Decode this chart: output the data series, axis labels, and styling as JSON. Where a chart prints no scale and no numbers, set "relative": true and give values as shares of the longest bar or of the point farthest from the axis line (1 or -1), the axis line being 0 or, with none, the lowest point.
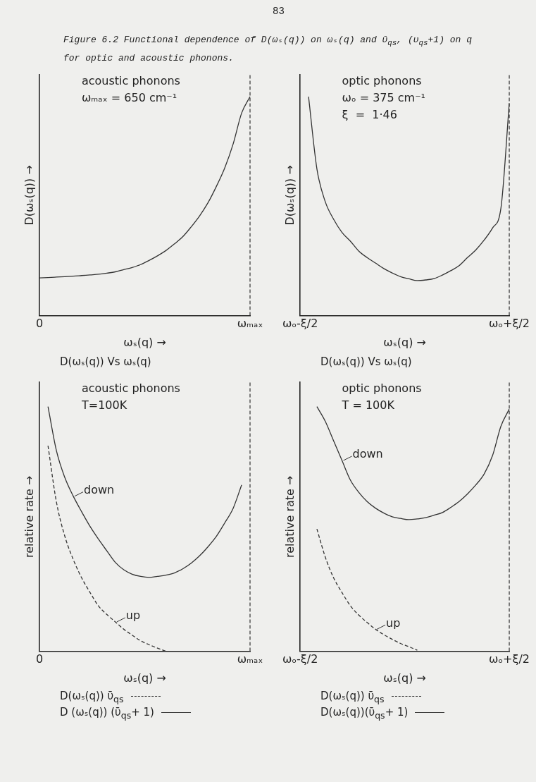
{
  "chart_data": [
    {
      "type": "other",
      "title": "Figure 6.2  Functional dependence of D(ωₛ(q)) on ωₛ(q) and ῡ$_{qs}$, (υ$_{qs}$+1) on q for optic and acoustic phonons.",
      "annotations": [
        "83"
      ]
    },
    {
      "type": "line",
      "title": "D(ωₛ(q)) Vs ωₛ(q)",
      "xlabel": "ωₛ(q) →",
      "ylabel": "D(ωₛ(q)) →",
      "annotations": [
        "acoustic phonons",
        "ωₘₐₓ = 650 cm⁻¹"
      ],
      "relative": true,
      "categories": [
        "0",
        null,
        null,
        null,
        null,
        null,
        null,
        null,
        null,
        null,
        null,
        null,
        null,
        null,
        null,
        null,
        null,
        null,
        null,
        null,
        null,
        null,
        null,
        null,
        null,
        "ωₘₐₓ"
      ],
      "ref_lines": [
        {
          "axis": "x",
          "value": "ωₘₐₓ",
          "line_style": "dashed",
          "color": "#333333"
        }
      ],
      "series": [
        {
          "color": "#333333",
          "values": [
            0.172,
            0.174,
            0.176,
            0.178,
            0.18,
            0.183,
            0.186,
            0.189,
            0.194,
            0.2,
            0.21,
            0.22,
            0.233,
            0.252,
            0.273,
            0.297,
            0.327,
            0.36,
            0.405,
            0.455,
            0.515,
            0.59,
            0.675,
            0.785,
            0.925,
            1
          ]
        }
      ]
    },
    {
      "type": "line",
      "title": "D(ωₛ(q)) Vs ωₛ(q)",
      "xlabel": "ωₛ(q) →",
      "ylabel": "D(ωₛ(q)) →",
      "annotations": [
        "optic phonons",
        "ωₒ = 375 cm⁻¹",
        "ξ  =  1·46"
      ],
      "relative": true,
      "categories": [
        "ωₒ-ξ/2",
        null,
        null,
        null,
        null,
        null,
        null,
        null,
        null,
        null,
        null,
        null,
        null,
        null,
        null,
        null,
        null,
        null,
        null,
        null,
        null,
        null,
        null,
        null,
        null,
        "ωₒ+ξ/2"
      ],
      "ref_lines": [
        {
          "axis": "x",
          "value": "ωₒ+ξ/2",
          "line_style": "dashed",
          "color": "#333333"
        }
      ],
      "series": [
        {
          "color": "#333333",
          "values": [
            null,
            1,
            0.67,
            0.52,
            0.44,
            0.38,
            0.34,
            0.295,
            0.265,
            0.24,
            0.215,
            0.195,
            0.178,
            0.168,
            0.16,
            0.163,
            0.169,
            0.185,
            0.205,
            0.228,
            0.265,
            0.3,
            0.345,
            0.4,
            0.49,
            0.97
          ]
        }
      ]
    },
    {
      "type": "line",
      "xlabel": "ωₛ(q) →",
      "ylabel": "relative rate →",
      "annotations": [
        "acoustic phonons",
        "T=100K",
        "down",
        "up"
      ],
      "relative": true,
      "categories": [
        "0",
        null,
        null,
        null,
        null,
        null,
        null,
        null,
        null,
        null,
        null,
        null,
        null,
        null,
        null,
        null,
        null,
        null,
        null,
        null,
        null,
        null,
        null,
        null,
        null,
        "ωₘₐₓ"
      ],
      "ref_lines": [
        {
          "axis": "x",
          "value": "ωₘₐₓ",
          "line_style": "dashed",
          "color": "#333333"
        }
      ],
      "legend": "bottom left",
      "series": [
        {
          "name": "D(ωₛ(q)) ῡ$_{qs}$",
          "color": "#333333",
          "line_style": "dashed",
          "values": [
            null,
            0.84,
            0.61,
            0.47,
            0.375,
            0.3,
            0.24,
            0.185,
            0.15,
            0.12,
            0.09,
            0.066,
            0.043,
            0.027,
            0.013,
            0,
            null,
            null,
            null,
            null,
            null,
            null,
            null,
            null,
            null,
            null
          ]
        },
        {
          "name": "D (ωₛ(q)) (ῡ$_{qs}$+ 1)",
          "color": "#333333",
          "line_style": "solid",
          "values": [
            null,
            1,
            0.82,
            0.71,
            0.634,
            0.57,
            0.51,
            0.458,
            0.41,
            0.363,
            0.333,
            0.315,
            0.306,
            0.302,
            0.306,
            0.311,
            0.32,
            0.337,
            0.36,
            0.39,
            0.427,
            0.47,
            0.525,
            0.585,
            0.68,
            null
          ]
        }
      ]
    },
    {
      "type": "line",
      "xlabel": "ωₛ(q) →",
      "ylabel": "relative rate →",
      "annotations": [
        "optic phonons",
        "T = 100K",
        "down",
        "up"
      ],
      "relative": true,
      "categories": [
        "ωₒ-ξ/2",
        null,
        null,
        null,
        null,
        null,
        null,
        null,
        null,
        null,
        null,
        null,
        null,
        null,
        null,
        null,
        null,
        null,
        null,
        null,
        null,
        null,
        null,
        null,
        null,
        "ωₒ+ξ/2"
      ],
      "ref_lines": [
        {
          "axis": "x",
          "value": "ωₒ+ξ/2",
          "line_style": "dashed",
          "color": "#333333"
        }
      ],
      "legend": "bottom left",
      "series": [
        {
          "name": "D(ωₛ(q)) ῡ$_{qs}$",
          "color": "#333333",
          "line_style": "dashed",
          "values": [
            null,
            null,
            0.5,
            0.385,
            0.3,
            0.24,
            0.186,
            0.148,
            0.118,
            0.09,
            0.068,
            0.049,
            0.032,
            0.019,
            0.004,
            null,
            null,
            null,
            null,
            null,
            null,
            null,
            null,
            null,
            null,
            null
          ]
        },
        {
          "name": "D(ωₛ(q))(ῡ$_{qs}$+ 1)",
          "color": "#333333",
          "line_style": "solid",
          "values": [
            null,
            null,
            1,
            0.94,
            0.86,
            0.78,
            0.7,
            0.65,
            0.612,
            0.585,
            0.565,
            0.55,
            0.543,
            0.538,
            0.541,
            0.546,
            0.556,
            0.567,
            0.588,
            0.612,
            0.643,
            0.68,
            0.725,
            0.8,
            0.92,
            0.99
          ]
        }
      ]
    }
  ]
}
